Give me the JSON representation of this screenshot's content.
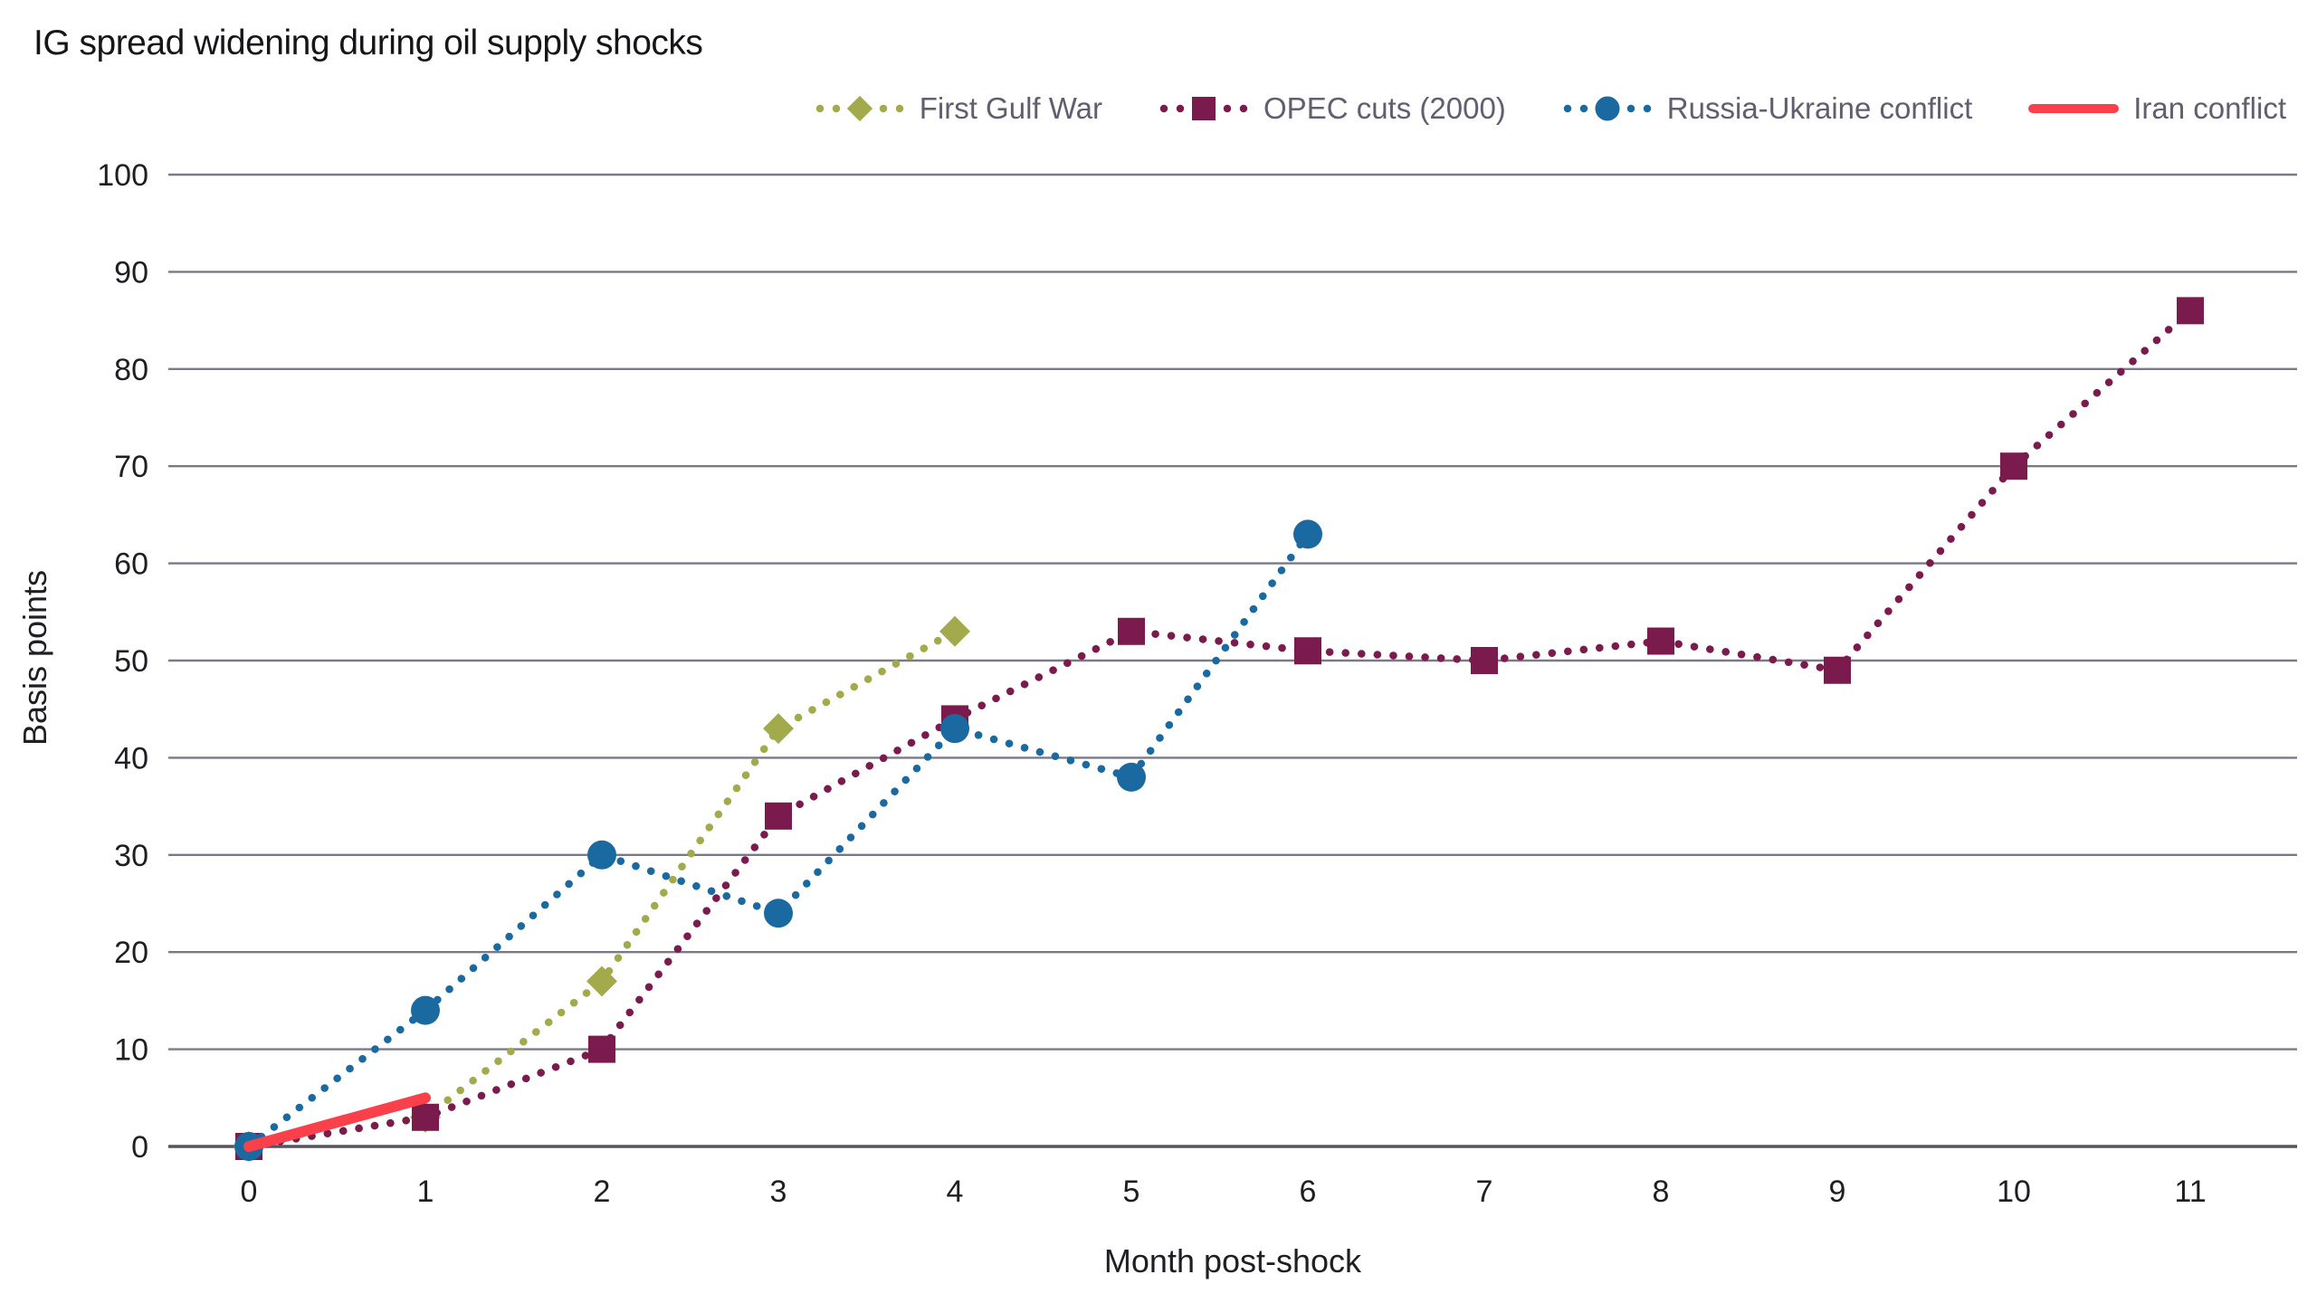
{
  "title": "IG spread widening during oil supply shocks",
  "ui_colors": {
    "background": "#ffffff",
    "grid": "#7b7887",
    "axis_line": "#565461",
    "tick_text": "#1e1e24",
    "axis_title_text": "#1e1e24",
    "legend_text": "#605e6f",
    "title_text": "#15151a"
  },
  "chart_data": {
    "type": "line",
    "title": "IG spread widening during oil supply shocks",
    "xlabel": "Month post-shock",
    "ylabel": "Basis points",
    "xlim": [
      -0.5,
      11.6
    ],
    "ylim": [
      0,
      100
    ],
    "xticks": [
      0,
      1,
      2,
      3,
      4,
      5,
      6,
      7,
      8,
      9,
      10,
      11
    ],
    "yticks": [
      0,
      10,
      20,
      30,
      40,
      50,
      60,
      70,
      80,
      90,
      100
    ],
    "grid": "horizontal",
    "legend_position": "top-right",
    "series": [
      {
        "name": "First Gulf War",
        "color": "#a3aa4b",
        "marker": "diamond",
        "line": "dotted",
        "x": [
          0,
          1,
          2,
          3,
          4
        ],
        "values": [
          0,
          3,
          17,
          43,
          53
        ]
      },
      {
        "name": "OPEC cuts (2000)",
        "color": "#7b1b4d",
        "marker": "square",
        "line": "dotted",
        "x": [
          0,
          1,
          2,
          3,
          4,
          5,
          6,
          7,
          8,
          9,
          10,
          11
        ],
        "values": [
          0,
          3,
          10,
          34,
          44,
          53,
          51,
          50,
          52,
          49,
          70,
          86
        ]
      },
      {
        "name": "Russia-Ukraine conflict",
        "color": "#1a69a0",
        "marker": "circle",
        "line": "dotted",
        "x": [
          0,
          1,
          2,
          3,
          4,
          5,
          6
        ],
        "values": [
          0,
          14,
          30,
          24,
          43,
          38,
          63
        ]
      },
      {
        "name": "Iran conflict",
        "color": "#fa414b",
        "marker": "none",
        "line": "solid",
        "x": [
          0,
          1
        ],
        "values": [
          0,
          5
        ]
      }
    ]
  }
}
